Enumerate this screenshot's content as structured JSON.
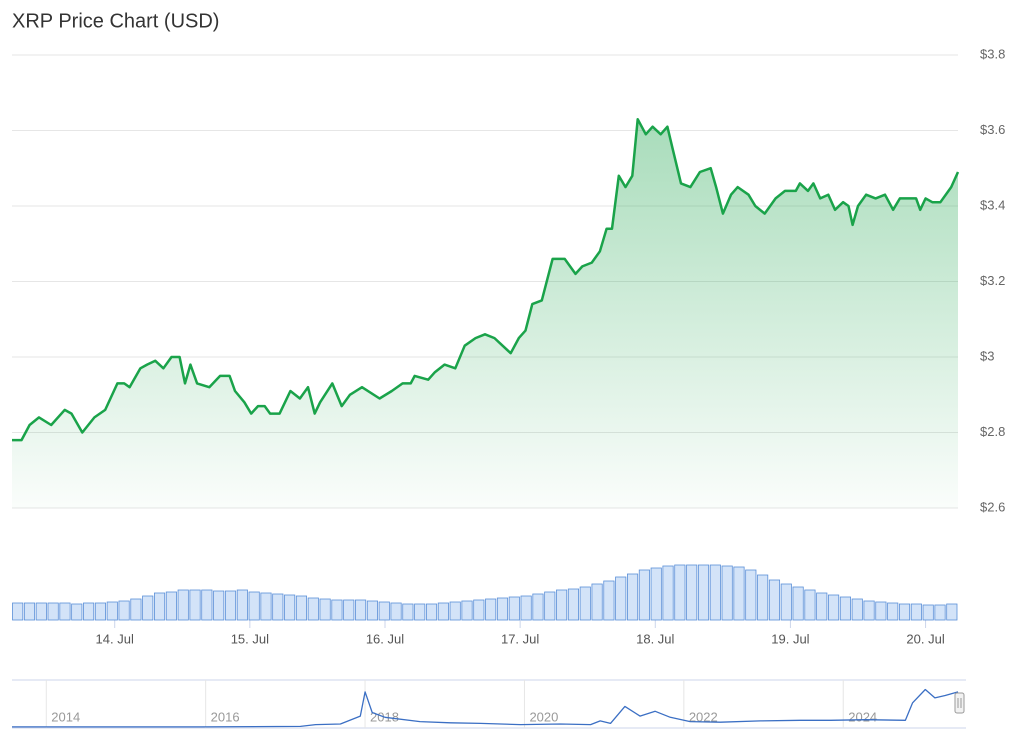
{
  "chart_data": [
    {
      "type": "line",
      "title": "XRP Price Chart (USD)",
      "x": [
        13.24,
        13.31,
        13.37,
        13.44,
        13.53,
        13.63,
        13.68,
        13.76,
        13.85,
        13.93,
        14.02,
        14.07,
        14.11,
        14.19,
        14.24,
        14.3,
        14.36,
        14.42,
        14.48,
        14.52,
        14.56,
        14.61,
        14.7,
        14.78,
        14.85,
        14.89,
        14.96,
        15.01,
        15.06,
        15.11,
        15.15,
        15.22,
        15.3,
        15.37,
        15.43,
        15.48,
        15.52,
        15.61,
        15.68,
        15.74,
        15.83,
        15.96,
        16.05,
        16.13,
        16.19,
        16.22,
        16.32,
        16.37,
        16.44,
        16.52,
        16.59,
        16.67,
        16.74,
        16.81,
        16.87,
        16.93,
        16.99,
        17.04,
        17.09,
        17.16,
        17.24,
        17.33,
        17.41,
        17.46,
        17.53,
        17.59,
        17.64,
        17.68,
        17.73,
        17.78,
        17.83,
        17.87,
        17.93,
        17.98,
        18.04,
        18.09,
        18.13,
        18.19,
        18.26,
        18.33,
        18.41,
        18.45,
        18.5,
        18.56,
        18.61,
        18.69,
        18.74,
        18.81,
        18.89,
        18.96,
        19.04,
        19.07,
        19.13,
        19.17,
        19.22,
        19.28,
        19.33,
        19.39,
        19.43,
        19.46,
        19.5,
        19.56,
        19.63,
        19.7,
        19.76,
        19.81,
        19.93,
        19.96,
        20.0,
        20.05,
        20.11,
        20.19,
        20.24
      ],
      "series": [
        {
          "name": "XRP",
          "color": "#1aa34a",
          "values": [
            2.78,
            2.78,
            2.82,
            2.84,
            2.82,
            2.86,
            2.85,
            2.8,
            2.84,
            2.86,
            2.93,
            2.93,
            2.92,
            2.97,
            2.98,
            2.99,
            2.97,
            3.0,
            3.0,
            2.93,
            2.98,
            2.93,
            2.92,
            2.95,
            2.95,
            2.91,
            2.88,
            2.85,
            2.87,
            2.87,
            2.85,
            2.85,
            2.91,
            2.89,
            2.92,
            2.85,
            2.88,
            2.93,
            2.87,
            2.9,
            2.92,
            2.89,
            2.91,
            2.93,
            2.93,
            2.95,
            2.94,
            2.96,
            2.98,
            2.97,
            3.03,
            3.05,
            3.06,
            3.05,
            3.03,
            3.01,
            3.05,
            3.07,
            3.14,
            3.15,
            3.26,
            3.26,
            3.22,
            3.24,
            3.25,
            3.28,
            3.34,
            3.34,
            3.48,
            3.45,
            3.48,
            3.63,
            3.59,
            3.61,
            3.59,
            3.61,
            3.55,
            3.46,
            3.45,
            3.49,
            3.5,
            3.45,
            3.38,
            3.43,
            3.45,
            3.43,
            3.4,
            3.38,
            3.42,
            3.44,
            3.44,
            3.46,
            3.44,
            3.46,
            3.42,
            3.43,
            3.39,
            3.41,
            3.4,
            3.35,
            3.4,
            3.43,
            3.42,
            3.43,
            3.39,
            3.42,
            3.42,
            3.39,
            3.42,
            3.41,
            3.41,
            3.45,
            3.49
          ]
        }
      ],
      "xlim": [
        13.24,
        20.24
      ],
      "xticks": [
        {
          "value": 14,
          "label": "14. Jul"
        },
        {
          "value": 15,
          "label": "15. Jul"
        },
        {
          "value": 16,
          "label": "16. Jul"
        },
        {
          "value": 17,
          "label": "17. Jul"
        },
        {
          "value": 18,
          "label": "18. Jul"
        },
        {
          "value": 19,
          "label": "19. Jul"
        },
        {
          "value": 20,
          "label": "20. Jul"
        }
      ],
      "ylim": [
        2.6,
        3.8
      ],
      "yticks": [
        {
          "value": 2.6,
          "label": "$2.6"
        },
        {
          "value": 2.8,
          "label": "$2.8"
        },
        {
          "value": 3,
          "label": "$3"
        },
        {
          "value": 3.2,
          "label": "$3.2"
        },
        {
          "value": 3.4,
          "label": "$3.4"
        },
        {
          "value": 3.6,
          "label": "$3.6"
        },
        {
          "value": 3.8,
          "label": "$3.8"
        }
      ],
      "grid": true
    },
    {
      "type": "bar",
      "color": "#d3e3f8",
      "edge_color": "#5b8fd8",
      "values": [
        17,
        17,
        17,
        17,
        17,
        16,
        17,
        17,
        18,
        19,
        21,
        24,
        27,
        28,
        30,
        30,
        30,
        29,
        29,
        30,
        28,
        27,
        26,
        25,
        24,
        22,
        21,
        20,
        20,
        20,
        19,
        18,
        17,
        16,
        16,
        16,
        17,
        18,
        19,
        20,
        21,
        22,
        23,
        24,
        26,
        28,
        30,
        31,
        33,
        36,
        39,
        43,
        46,
        50,
        52,
        54,
        55,
        55,
        55,
        55,
        54,
        53,
        50,
        45,
        40,
        36,
        33,
        30,
        27,
        25,
        23,
        21,
        19,
        18,
        17,
        16,
        16,
        15,
        15,
        16
      ],
      "ylim": [
        0,
        60
      ]
    },
    {
      "type": "line",
      "color": "#3b6fc4",
      "x": [
        2013.57,
        2015.93,
        2017.19,
        2017.38,
        2017.69,
        2017.94,
        2018.0,
        2018.09,
        2018.25,
        2018.69,
        2019.07,
        2019.45,
        2019.95,
        2020.45,
        2020.83,
        2020.95,
        2021.08,
        2021.26,
        2021.45,
        2021.64,
        2021.83,
        2022.08,
        2022.46,
        2022.96,
        2023.46,
        2023.84,
        2024.28,
        2024.78,
        2024.87,
        2025.03,
        2025.15,
        2025.28,
        2025.44
      ],
      "values": [
        0.01,
        0.01,
        0.05,
        0.2,
        0.25,
        0.9,
        2.9,
        1.2,
        0.8,
        0.45,
        0.35,
        0.3,
        0.2,
        0.25,
        0.2,
        0.5,
        0.3,
        1.7,
        0.9,
        1.3,
        0.8,
        0.45,
        0.4,
        0.5,
        0.55,
        0.55,
        0.6,
        0.55,
        2.0,
        3.1,
        2.4,
        2.6,
        2.9
      ],
      "xlim": [
        2013.57,
        2025.44
      ],
      "xticks": [
        2014,
        2016,
        2018,
        2020,
        2022,
        2024
      ],
      "ylim": [
        0,
        3.8
      ]
    }
  ]
}
